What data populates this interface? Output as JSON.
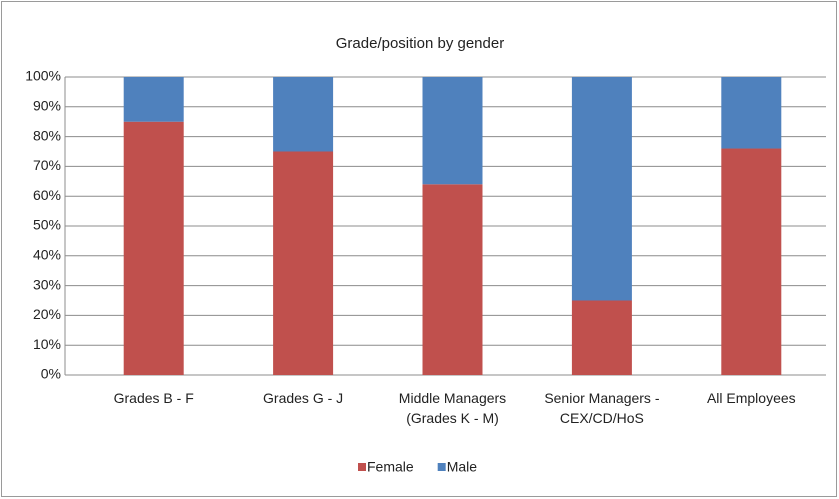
{
  "chart_data": {
    "type": "stacked-bar",
    "title": "Grade/position by gender",
    "categories": [
      [
        "Grades B - F"
      ],
      [
        "Grades G - J"
      ],
      [
        "Middle Managers",
        "(Grades K - M)"
      ],
      [
        "Senior Managers -",
        "CEX/CD/HoS"
      ],
      [
        "All Employees"
      ]
    ],
    "series": [
      {
        "name": "Female",
        "color": "#c0504d",
        "values": [
          85,
          75,
          64,
          25,
          76
        ]
      },
      {
        "name": "Male",
        "color": "#4f81bd",
        "values": [
          15,
          25,
          36,
          75,
          24
        ]
      }
    ],
    "ylim": [
      0,
      100
    ],
    "yticks": [
      {
        "value": 0,
        "label": "0%"
      },
      {
        "value": 10,
        "label": "10%"
      },
      {
        "value": 20,
        "label": "20%"
      },
      {
        "value": 30,
        "label": "30%"
      },
      {
        "value": 40,
        "label": "40%"
      },
      {
        "value": 50,
        "label": "50%"
      },
      {
        "value": 60,
        "label": "60%"
      },
      {
        "value": 70,
        "label": "70%"
      },
      {
        "value": 80,
        "label": "80%"
      },
      {
        "value": 90,
        "label": "90%"
      },
      {
        "value": 100,
        "label": "100%"
      }
    ],
    "grid": true,
    "legend": "bottom"
  }
}
